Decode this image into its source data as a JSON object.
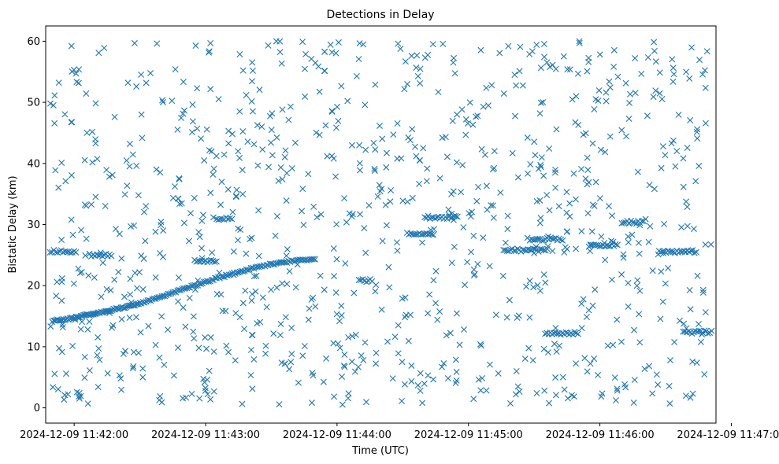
{
  "chart_data": {
    "type": "scatter",
    "title": "Detections in Delay",
    "xlabel": "Time (UTC)",
    "ylabel": "Bistatic Delay (km)",
    "marker": "x",
    "color": "#1f77b4",
    "x_axis_kind": "time",
    "xlim": [
      "2024-12-09 11:41:47",
      "2024-12-09 11:46:53"
    ],
    "ylim": [
      -2.5,
      62.5
    ],
    "x_ticks": [
      "2024-12-09 11:42:00",
      "2024-12-09 11:43:00",
      "2024-12-09 11:44:00",
      "2024-12-09 11:45:00",
      "2024-12-09 11:46:00",
      "2024-12-09 11:47:00"
    ],
    "y_ticks": [
      "0",
      "10",
      "20",
      "30",
      "40",
      "50",
      "60"
    ],
    "grid": false,
    "legend": false,
    "track_points": [
      {
        "x": "2024-12-09 11:41:50",
        "y": 14.2
      },
      {
        "x": "2024-12-09 11:41:54",
        "y": 14.4
      },
      {
        "x": "2024-12-09 11:41:58",
        "y": 14.6
      },
      {
        "x": "2024-12-09 11:42:02",
        "y": 14.9
      },
      {
        "x": "2024-12-09 11:42:06",
        "y": 15.2
      },
      {
        "x": "2024-12-09 11:42:10",
        "y": 15.5
      },
      {
        "x": "2024-12-09 11:42:14",
        "y": 15.8
      },
      {
        "x": "2024-12-09 11:42:18",
        "y": 16.1
      },
      {
        "x": "2024-12-09 11:42:22",
        "y": 16.4
      },
      {
        "x": "2024-12-09 11:42:26",
        "y": 16.7
      },
      {
        "x": "2024-12-09 11:42:30",
        "y": 17.1
      },
      {
        "x": "2024-12-09 11:42:35",
        "y": 17.6
      },
      {
        "x": "2024-12-09 11:42:40",
        "y": 18.2
      },
      {
        "x": "2024-12-09 11:42:45",
        "y": 18.8
      },
      {
        "x": "2024-12-09 11:42:50",
        "y": 19.4
      },
      {
        "x": "2024-12-09 11:42:55",
        "y": 20.0
      },
      {
        "x": "2024-12-09 11:43:00",
        "y": 20.6
      },
      {
        "x": "2024-12-09 11:43:05",
        "y": 21.2
      },
      {
        "x": "2024-12-09 11:43:10",
        "y": 21.7
      },
      {
        "x": "2024-12-09 11:43:15",
        "y": 22.2
      },
      {
        "x": "2024-12-09 11:43:20",
        "y": 22.7
      },
      {
        "x": "2024-12-09 11:43:25",
        "y": 23.1
      },
      {
        "x": "2024-12-09 11:43:30",
        "y": 23.5
      },
      {
        "x": "2024-12-09 11:43:35",
        "y": 23.8
      },
      {
        "x": "2024-12-09 11:43:40",
        "y": 24.0
      },
      {
        "x": "2024-12-09 11:43:45",
        "y": 24.2
      },
      {
        "x": "2024-12-09 11:43:50",
        "y": 24.3
      }
    ],
    "horizontal_segments": [
      {
        "start": "2024-12-09 11:41:49",
        "end": "2024-12-09 11:42:00",
        "y": 25.6
      },
      {
        "start": "2024-12-09 11:42:07",
        "end": "2024-12-09 11:42:17",
        "y": 25.0
      },
      {
        "start": "2024-12-09 11:42:55",
        "end": "2024-12-09 11:43:05",
        "y": 24.0
      },
      {
        "start": "2024-12-09 11:43:05",
        "end": "2024-12-09 11:43:12",
        "y": 31.0
      },
      {
        "start": "2024-12-09 11:44:10",
        "end": "2024-12-09 11:44:16",
        "y": 20.8
      },
      {
        "start": "2024-12-09 11:44:32",
        "end": "2024-12-09 11:44:44",
        "y": 28.4
      },
      {
        "start": "2024-12-09 11:44:40",
        "end": "2024-12-09 11:44:55",
        "y": 31.2
      },
      {
        "start": "2024-12-09 11:45:16",
        "end": "2024-12-09 11:45:36",
        "y": 25.8
      },
      {
        "start": "2024-12-09 11:45:28",
        "end": "2024-12-09 11:45:43",
        "y": 27.6
      },
      {
        "start": "2024-12-09 11:45:35",
        "end": "2024-12-09 11:45:50",
        "y": 12.2
      },
      {
        "start": "2024-12-09 11:45:55",
        "end": "2024-12-09 11:46:08",
        "y": 26.6
      },
      {
        "start": "2024-12-09 11:46:10",
        "end": "2024-12-09 11:46:20",
        "y": 30.4
      },
      {
        "start": "2024-12-09 11:46:27",
        "end": "2024-12-09 11:46:44",
        "y": 25.6
      },
      {
        "start": "2024-12-09 11:46:38",
        "end": "2024-12-09 11:46:51",
        "y": 12.4
      }
    ],
    "clutter_detections": {
      "x_range": [
        "2024-12-09 11:41:49",
        "2024-12-09 11:46:51"
      ],
      "y_range": [
        0.5,
        60
      ],
      "count": 950
    }
  }
}
